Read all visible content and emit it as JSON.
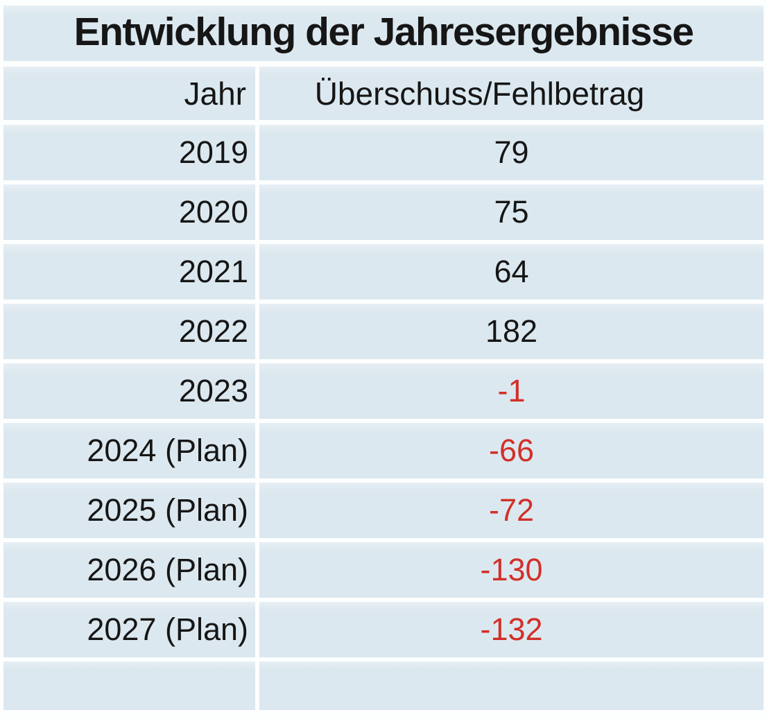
{
  "table": {
    "title": "Entwicklung der Jahresergebnisse",
    "columns": [
      {
        "label": "Jahr"
      },
      {
        "label": "Überschuss/Fehlbetrag"
      }
    ],
    "rows": [
      {
        "year": "2019",
        "value": "79"
      },
      {
        "year": "2020",
        "value": "75"
      },
      {
        "year": "2021",
        "value": "64"
      },
      {
        "year": "2022",
        "value": "182"
      },
      {
        "year": "2023",
        "value": "-1"
      },
      {
        "year": "2024 (Plan)",
        "value": "-66"
      },
      {
        "year": "2025 (Plan)",
        "value": "-72"
      },
      {
        "year": "2026 (Plan)",
        "value": "-130"
      },
      {
        "year": "2027 (Plan)",
        "value": "-132"
      }
    ]
  },
  "colors": {
    "row_background": "#dce8ef",
    "separator": "#fdfefe",
    "text": "#161616",
    "negative_value": "#d22f28"
  },
  "chart_data": {
    "type": "table",
    "title": "Entwicklung der Jahresergebnisse",
    "columns": [
      "Jahr",
      "Überschuss/Fehlbetrag"
    ],
    "categories": [
      "2019",
      "2020",
      "2021",
      "2022",
      "2023",
      "2024 (Plan)",
      "2025 (Plan)",
      "2026 (Plan)",
      "2027 (Plan)"
    ],
    "values": [
      79,
      75,
      64,
      182,
      -1,
      -66,
      -72,
      -130,
      -132
    ],
    "notes": "Negative values (deficits) rendered in red, positive values (surplus) in black",
    "negative_color": "#d22f28",
    "legend_position": "none",
    "grid": "white row separators on pale blue cells"
  }
}
